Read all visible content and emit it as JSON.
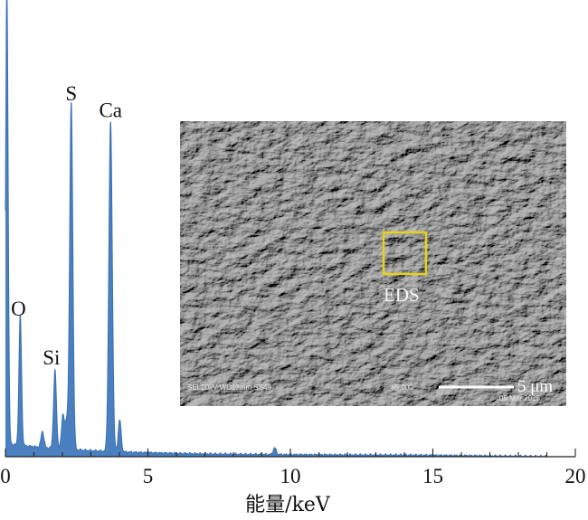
{
  "chart_data": {
    "type": "line",
    "xlabel": "能量/keV",
    "ylabel": "",
    "xlim": [
      0,
      20
    ],
    "ylim": [
      0,
      100
    ],
    "x_ticks": [
      "0",
      "5",
      "10",
      "15",
      "20"
    ],
    "series_color": "#4a7fc0",
    "peaks": [
      {
        "label": "O",
        "x": 0.52,
        "y": 28.5
      },
      {
        "label": "Si",
        "x": 1.74,
        "y": 17.0
      },
      {
        "label": "S",
        "x": 2.31,
        "y": 76.0
      },
      {
        "label": "Ca",
        "x": 3.69,
        "y": 72.0
      }
    ],
    "minor_peaks": [
      {
        "x": 0.05,
        "y": 100.0
      },
      {
        "x": 1.3,
        "y": 3.5
      },
      {
        "x": 2.02,
        "y": 7.5
      },
      {
        "x": 2.15,
        "y": 6.0
      },
      {
        "x": 4.01,
        "y": 7.0
      },
      {
        "x": 9.45,
        "y": 1.5
      }
    ],
    "inset": {
      "description_label": "EDS",
      "scale_bar": "5 μm",
      "footer_left": "SEI   20kV   WD13mm   SS49",
      "footer_mag": "×5,000",
      "footer_date": "05 Mar 2025",
      "box_color": "#e6d21e"
    }
  }
}
